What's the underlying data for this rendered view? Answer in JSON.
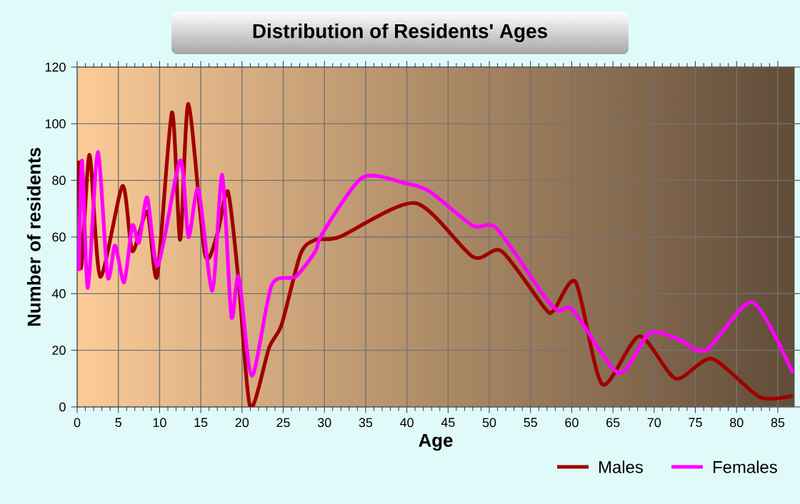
{
  "chart_data": {
    "type": "line",
    "title": "Distribution of Residents' Ages",
    "xlabel": "Age",
    "ylabel": "Number of residents",
    "xlim": [
      0,
      87
    ],
    "ylim": [
      0,
      120
    ],
    "xticks": [
      0,
      5,
      10,
      15,
      20,
      25,
      30,
      35,
      40,
      45,
      50,
      55,
      60,
      65,
      70,
      75,
      80,
      85
    ],
    "yticks": [
      0,
      20,
      40,
      60,
      80,
      100,
      120
    ],
    "grid": true,
    "legend": "bottom",
    "series": [
      {
        "name": "Males",
        "color": "#a00000",
        "x": [
          0.2,
          0.5,
          1.5,
          2.8,
          5.5,
          6.7,
          8.5,
          9.7,
          11.5,
          12.5,
          13.5,
          15.5,
          17,
          18.3,
          19.6,
          21,
          23.3,
          24.8,
          27.1,
          28.9,
          31.8,
          41,
          48,
          51.5,
          56.7,
          57.8,
          60.5,
          63.7,
          68.2,
          72.6,
          77,
          82.8,
          86.8
        ],
        "values": [
          87,
          49,
          89,
          46,
          78,
          55,
          69,
          46,
          104,
          59,
          107,
          54,
          61,
          76,
          44,
          0,
          21,
          29,
          54,
          59,
          60,
          72,
          53,
          55,
          35,
          34,
          44,
          8,
          25,
          10,
          17,
          3.5,
          4
        ]
      },
      {
        "name": "Females",
        "color": "#ff00ff",
        "x": [
          0.2,
          0.6,
          1.3,
          2.5,
          3.7,
          4.6,
          5.7,
          6.7,
          7.5,
          8.5,
          9.8,
          12.5,
          13.5,
          14.7,
          16.4,
          17.6,
          18.7,
          19.6,
          21.2,
          23.6,
          26.5,
          28.9,
          29.7,
          34.6,
          39.8,
          42.8,
          48,
          50.9,
          56.7,
          58.4,
          60.2,
          65.7,
          69.4,
          72.9,
          76.3,
          81.9,
          86.8
        ],
        "values": [
          48,
          87,
          42,
          90,
          46,
          57,
          44,
          64,
          58,
          74,
          50,
          87,
          60,
          77,
          41,
          82,
          32,
          46,
          11,
          43,
          46,
          55,
          61,
          81,
          79,
          76,
          64,
          63,
          39,
          34,
          34,
          12,
          26,
          24,
          20,
          37,
          12
        ]
      }
    ]
  }
}
